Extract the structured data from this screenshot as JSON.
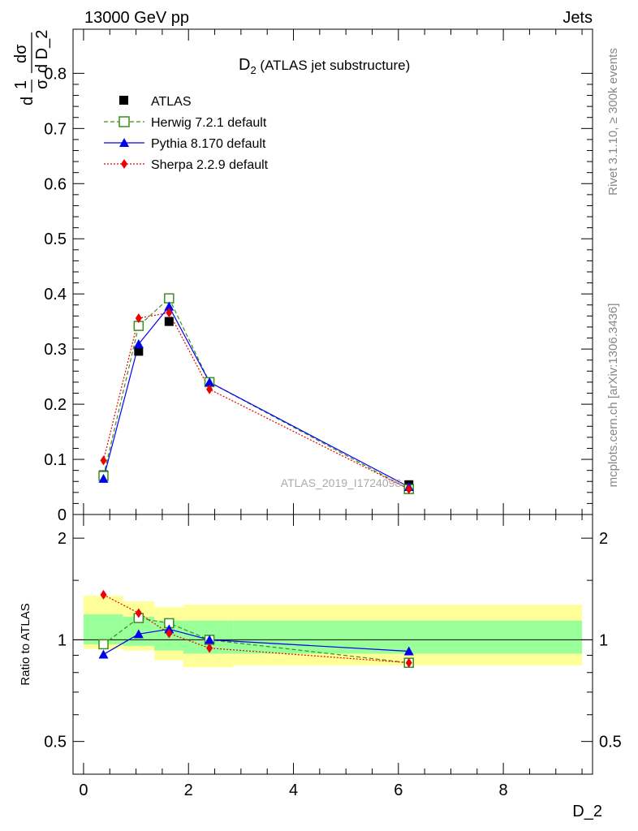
{
  "header": {
    "left": "13000 GeV pp",
    "right": "Jets"
  },
  "side_text": {
    "rivet": "Rivet 3.1.10, ≥ 300k events",
    "mcplots": "mcplots.cern.ch [arXiv:1306.3436]"
  },
  "watermark": "ATLAS_2019_I1724098",
  "chart_data": [
    {
      "type": "line",
      "title": "D",
      "title_sub": "2",
      "title_rest": " (ATLAS jet substructure)",
      "ylabel": {
        "frac1": "1",
        "frac1_den": "σ",
        "frac2": "dσ",
        "frac2_den": "d D_2",
        "prefix": "d"
      },
      "xlim": [
        -0.2,
        9.7
      ],
      "ylim": [
        0,
        0.88
      ],
      "yticks": [
        "0",
        "0.1",
        "0.2",
        "0.3",
        "0.4",
        "0.5",
        "0.6",
        "0.7",
        "0.8"
      ],
      "yticks_values": [
        0,
        0.1,
        0.2,
        0.3,
        0.4,
        0.5,
        0.6,
        0.7,
        0.8
      ],
      "legend_position": "top-left",
      "series": [
        {
          "name": "ATLAS",
          "color": "#000000",
          "marker": "square-filled",
          "x": [
            0.38,
            1.05,
            1.63,
            2.4,
            6.2
          ],
          "y": [
            0.072,
            0.296,
            0.35,
            0.24,
            0.054
          ]
        },
        {
          "name": "Herwig 7.2.1 default",
          "color": "#3a8f1e",
          "marker": "square-open",
          "dash": "5,3",
          "x": [
            0.38,
            1.05,
            1.63,
            2.4,
            6.2
          ],
          "y": [
            0.07,
            0.342,
            0.392,
            0.24,
            0.046
          ]
        },
        {
          "name": "Pythia 8.170 default",
          "color": "#0000ee",
          "marker": "triangle-filled",
          "dash": "",
          "x": [
            0.38,
            1.05,
            1.63,
            2.4,
            6.2
          ],
          "y": [
            0.065,
            0.309,
            0.377,
            0.24,
            0.05
          ]
        },
        {
          "name": "Sherpa 2.2.9 default",
          "color": "#ee0000",
          "marker": "diamond-filled",
          "dash": "2,2",
          "x": [
            0.38,
            1.05,
            1.63,
            2.4,
            6.2
          ],
          "y": [
            0.098,
            0.356,
            0.366,
            0.227,
            0.046
          ]
        }
      ]
    },
    {
      "type": "line",
      "ylabel": "Ratio to ATLAS",
      "xlabel": "D_2",
      "xlim": [
        -0.2,
        9.7
      ],
      "ylim": [
        0.4,
        2.35
      ],
      "log_y": true,
      "xticks": [
        "0",
        "2",
        "4",
        "6",
        "8"
      ],
      "xticks_values": [
        0,
        2,
        4,
        6,
        8
      ],
      "yticks": [
        "0.5",
        "1",
        "2"
      ],
      "yticks_values": [
        0.5,
        1,
        2
      ],
      "bands": {
        "x_edges": [
          0,
          0.75,
          1.35,
          1.9,
          2.85,
          9.5
        ],
        "yellow": [
          [
            0.94,
            1.35
          ],
          [
            0.93,
            1.3
          ],
          [
            0.87,
            1.25
          ],
          [
            0.83,
            1.27
          ],
          [
            0.84,
            1.27
          ]
        ],
        "green": [
          [
            0.97,
            1.19
          ],
          [
            0.96,
            1.17
          ],
          [
            0.93,
            1.14
          ],
          [
            0.91,
            1.14
          ],
          [
            0.91,
            1.14
          ]
        ]
      },
      "series": [
        {
          "name": "Herwig 7.2.1 default",
          "x": [
            0.38,
            1.05,
            1.63,
            2.4,
            6.2
          ],
          "y": [
            0.97,
            1.16,
            1.12,
            1.0,
            0.855
          ]
        },
        {
          "name": "Pythia 8.170 default",
          "x": [
            0.38,
            1.05,
            1.63,
            2.4,
            6.2
          ],
          "y": [
            0.905,
            1.04,
            1.075,
            1.0,
            0.925
          ]
        },
        {
          "name": "Sherpa 2.2.9 default",
          "x": [
            0.38,
            1.05,
            1.63,
            2.4,
            6.2
          ],
          "y": [
            1.36,
            1.2,
            1.045,
            0.945,
            0.855
          ]
        }
      ]
    }
  ]
}
